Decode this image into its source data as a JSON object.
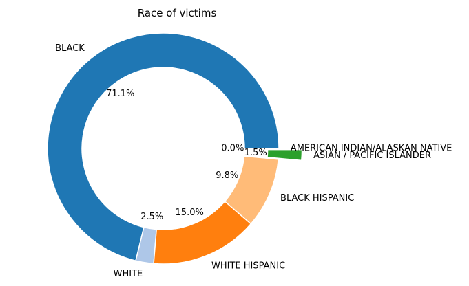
{
  "chart_data": {
    "type": "pie",
    "style": "donut",
    "title": "Race of victims",
    "slices": [
      {
        "label": "AMERICAN INDIAN/ALASKAN NATIVE",
        "pct_label": "0.0%",
        "value": 0.02,
        "color": "#1f77b4",
        "explode": 0
      },
      {
        "label": "BLACK",
        "pct_label": "71.1%",
        "value": 71.1,
        "color": "#1f77b4",
        "explode": 0
      },
      {
        "label": "WHITE",
        "pct_label": "2.5%",
        "value": 2.5,
        "color": "#aec7e8",
        "explode": 0
      },
      {
        "label": "WHITE HISPANIC",
        "pct_label": "15.0%",
        "value": 15.0,
        "color": "#ff7f0e",
        "explode": 0
      },
      {
        "label": "BLACK HISPANIC",
        "pct_label": "9.8%",
        "value": 9.8,
        "color": "#ffbb78",
        "explode": 0
      },
      {
        "label": "ASIAN / PACIFIC ISLANDER",
        "pct_label": "1.5%",
        "value": 1.5,
        "color": "#2ca02c",
        "explode": 0.2
      }
    ]
  }
}
